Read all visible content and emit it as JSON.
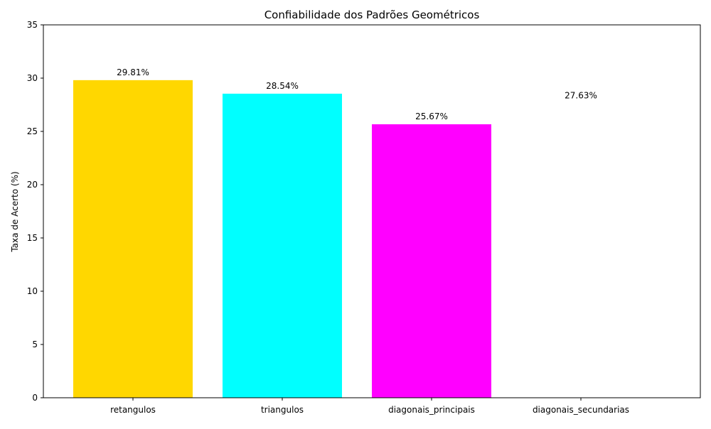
{
  "chart_data": {
    "type": "bar",
    "title": "Confiabilidade dos Padrões Geométricos",
    "xlabel": "",
    "ylabel": "Taxa de Acerto (%)",
    "categories": [
      "retangulos",
      "triangulos",
      "diagonais_principais",
      "diagonais_secundarias"
    ],
    "values": [
      29.81,
      28.54,
      25.67,
      27.63
    ],
    "value_labels": [
      "29.81%",
      "28.54%",
      "25.67%",
      "27.63%"
    ],
    "bar_colors": [
      "#FFD700",
      "#00FFFF",
      "#FF00FF",
      "#FFFFFF"
    ],
    "ylim": [
      0,
      35
    ],
    "yticks": [
      0,
      5,
      10,
      15,
      20,
      25,
      30,
      35
    ],
    "grid": false,
    "legend": "none"
  }
}
